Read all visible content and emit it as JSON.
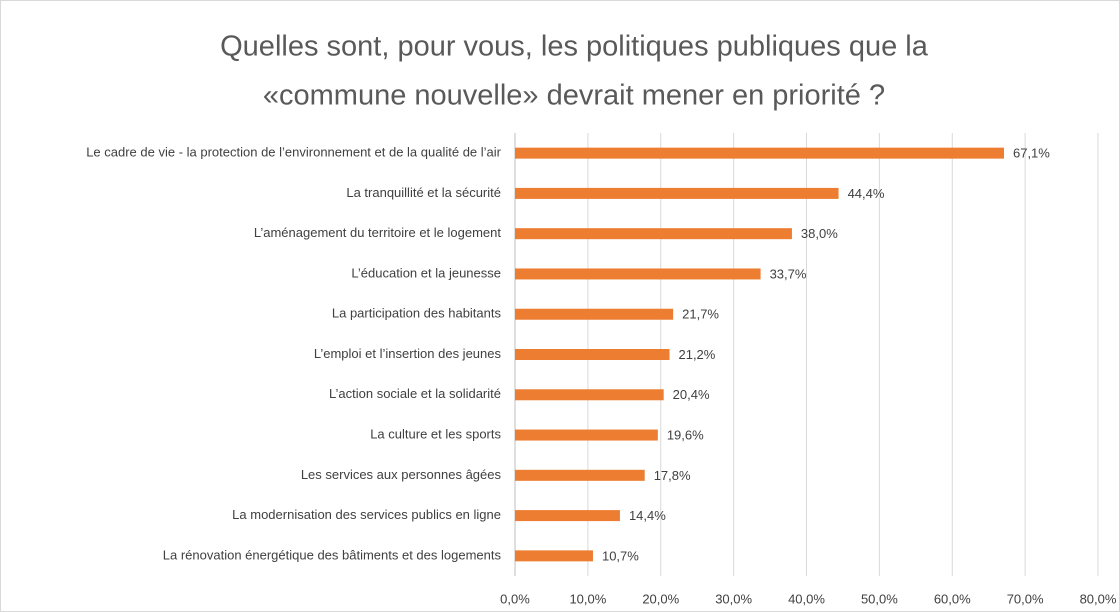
{
  "chart_data": {
    "type": "barh",
    "title": [
      "Quelles sont, pour vous, les politiques publiques que la",
      "«commune nouvelle» devrait mener en priorité ?"
    ],
    "categories": [
      "Le cadre de vie - la protection de l’environnement et de la qualité de l’air",
      "La tranquillité et la sécurité",
      "L’aménagement du territoire et le logement",
      "L’éducation et la jeunesse",
      "La participation des habitants",
      "L’emploi et l’insertion des jeunes",
      "L’action sociale et la solidarité",
      "La culture et les sports",
      "Les services aux personnes âgées",
      "La modernisation des services publics en ligne",
      "La rénovation énergétique des bâtiments et des logements"
    ],
    "values": [
      67.1,
      44.4,
      38.0,
      33.7,
      21.7,
      21.2,
      20.4,
      19.6,
      17.8,
      14.4,
      10.7
    ],
    "value_labels": [
      "67,1%",
      "44,4%",
      "38,0%",
      "33,7%",
      "21,7%",
      "21,2%",
      "20,4%",
      "19,6%",
      "17,8%",
      "14,4%",
      "10,7%"
    ],
    "color": "#ed7d31",
    "xlim": [
      0,
      80
    ],
    "xticks": [
      {
        "value": 0,
        "label": "0,0%"
      },
      {
        "value": 10,
        "label": "10,0%"
      },
      {
        "value": 20,
        "label": "20,0%"
      },
      {
        "value": 30,
        "label": "30,0%"
      },
      {
        "value": 40,
        "label": "40,0%"
      },
      {
        "value": 50,
        "label": "50,0%"
      },
      {
        "value": 60,
        "label": "60,0%"
      },
      {
        "value": 70,
        "label": "70,0%"
      },
      {
        "value": 80,
        "label": "80,0%"
      }
    ],
    "grid": true
  }
}
